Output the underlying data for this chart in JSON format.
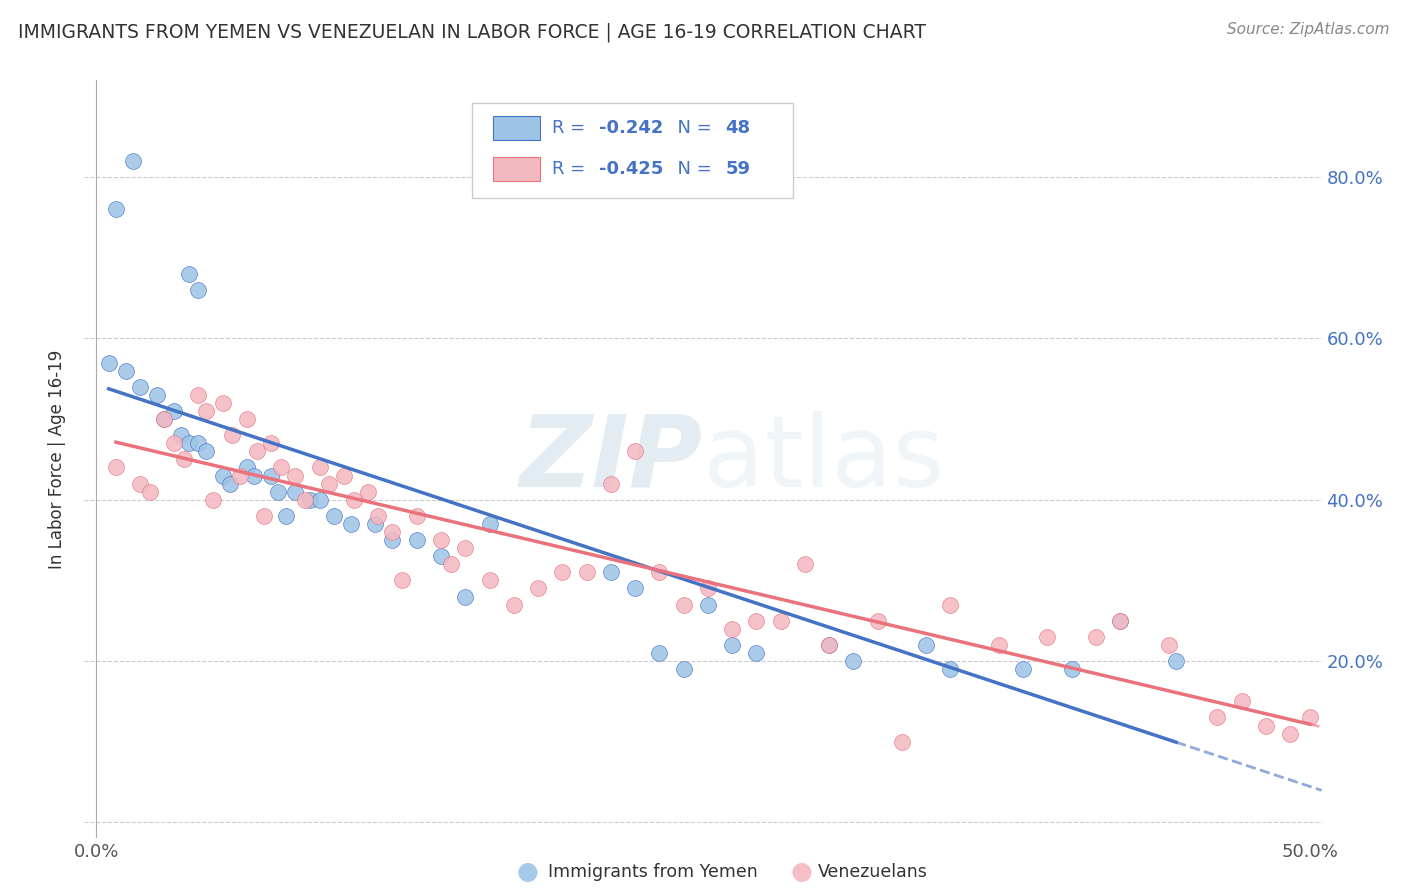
{
  "title": "IMMIGRANTS FROM YEMEN VS VENEZUELAN IN LABOR FORCE | AGE 16-19 CORRELATION CHART",
  "source": "Source: ZipAtlas.com",
  "ylabel": "In Labor Force | Age 16-19",
  "xlim": [
    -0.005,
    0.505
  ],
  "ylim": [
    -0.02,
    0.92
  ],
  "x_tick_positions": [
    0.0,
    0.1,
    0.2,
    0.3,
    0.4,
    0.5
  ],
  "x_tick_labels": [
    "0.0%",
    "",
    "",
    "",
    "",
    "50.0%"
  ],
  "y_tick_positions": [
    0.0,
    0.2,
    0.4,
    0.6,
    0.8
  ],
  "y_tick_labels_left": [
    "",
    "",
    "",
    "",
    ""
  ],
  "y_tick_labels_right": [
    "",
    "20.0%",
    "40.0%",
    "60.0%",
    "80.0%"
  ],
  "legend_r_blue": "-0.242",
  "legend_n_blue": "48",
  "legend_r_pink": "-0.425",
  "legend_n_pink": "59",
  "legend_text_color": "#4472c4",
  "blue_color": "#9dc3e6",
  "pink_color": "#f4b8c1",
  "blue_line_color": "#4472c4",
  "pink_line_color": "#e9727d",
  "watermark_zip": "ZIP",
  "watermark_atlas": "atlas",
  "blue_scatter_x": [
    0.008,
    0.015,
    0.038,
    0.042,
    0.175,
    0.005,
    0.012,
    0.018,
    0.025,
    0.028,
    0.032,
    0.035,
    0.038,
    0.042,
    0.045,
    0.052,
    0.055,
    0.062,
    0.065,
    0.072,
    0.075,
    0.078,
    0.082,
    0.088,
    0.092,
    0.098,
    0.105,
    0.115,
    0.122,
    0.132,
    0.142,
    0.152,
    0.162,
    0.212,
    0.222,
    0.232,
    0.242,
    0.252,
    0.262,
    0.272,
    0.302,
    0.312,
    0.342,
    0.352,
    0.382,
    0.402,
    0.422,
    0.445
  ],
  "blue_scatter_y": [
    0.76,
    0.82,
    0.68,
    0.66,
    0.79,
    0.57,
    0.56,
    0.54,
    0.53,
    0.5,
    0.51,
    0.48,
    0.47,
    0.47,
    0.46,
    0.43,
    0.42,
    0.44,
    0.43,
    0.43,
    0.41,
    0.38,
    0.41,
    0.4,
    0.4,
    0.38,
    0.37,
    0.37,
    0.35,
    0.35,
    0.33,
    0.28,
    0.37,
    0.31,
    0.29,
    0.21,
    0.19,
    0.27,
    0.22,
    0.21,
    0.22,
    0.2,
    0.22,
    0.19,
    0.19,
    0.19,
    0.25,
    0.2
  ],
  "pink_scatter_x": [
    0.008,
    0.018,
    0.022,
    0.028,
    0.032,
    0.036,
    0.042,
    0.045,
    0.048,
    0.052,
    0.056,
    0.059,
    0.062,
    0.066,
    0.069,
    0.072,
    0.076,
    0.082,
    0.086,
    0.092,
    0.096,
    0.102,
    0.106,
    0.112,
    0.116,
    0.122,
    0.126,
    0.132,
    0.142,
    0.146,
    0.152,
    0.162,
    0.172,
    0.182,
    0.192,
    0.202,
    0.212,
    0.222,
    0.232,
    0.242,
    0.252,
    0.262,
    0.272,
    0.282,
    0.292,
    0.302,
    0.322,
    0.332,
    0.352,
    0.372,
    0.392,
    0.412,
    0.422,
    0.442,
    0.462,
    0.472,
    0.482,
    0.492,
    0.5
  ],
  "pink_scatter_y": [
    0.44,
    0.42,
    0.41,
    0.5,
    0.47,
    0.45,
    0.53,
    0.51,
    0.4,
    0.52,
    0.48,
    0.43,
    0.5,
    0.46,
    0.38,
    0.47,
    0.44,
    0.43,
    0.4,
    0.44,
    0.42,
    0.43,
    0.4,
    0.41,
    0.38,
    0.36,
    0.3,
    0.38,
    0.35,
    0.32,
    0.34,
    0.3,
    0.27,
    0.29,
    0.31,
    0.31,
    0.42,
    0.46,
    0.31,
    0.27,
    0.29,
    0.24,
    0.25,
    0.25,
    0.32,
    0.22,
    0.25,
    0.1,
    0.27,
    0.22,
    0.23,
    0.23,
    0.25,
    0.22,
    0.13,
    0.15,
    0.12,
    0.11,
    0.13
  ]
}
